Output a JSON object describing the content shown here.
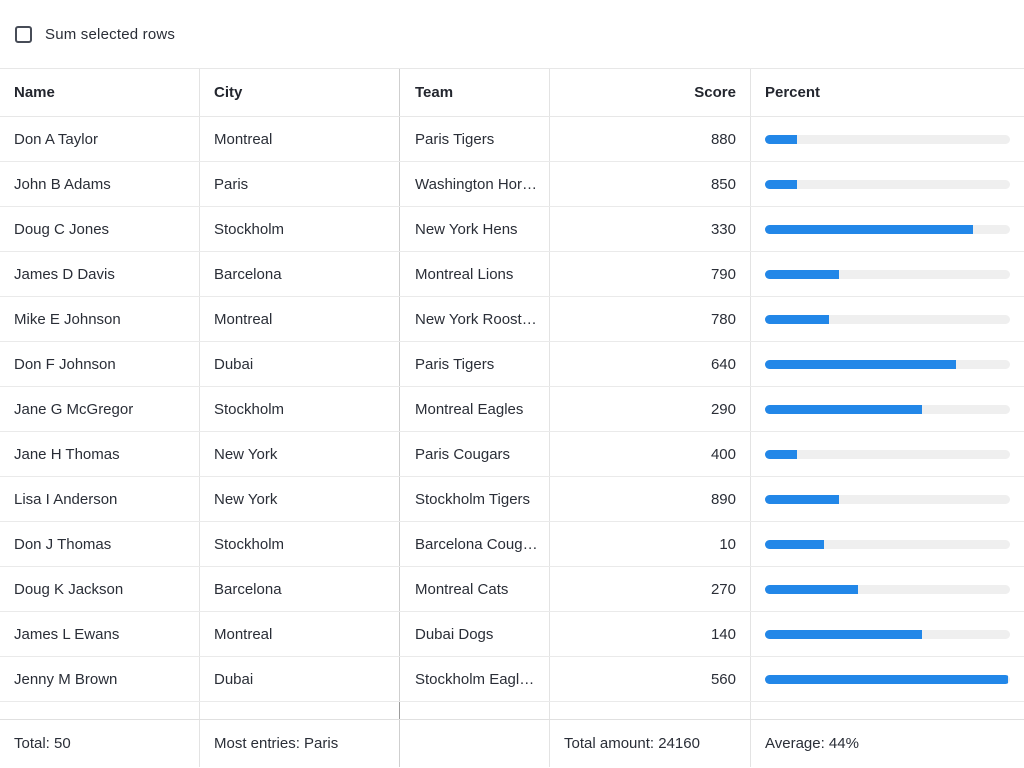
{
  "toolbar": {
    "checkbox_label": "Sum selected rows",
    "checkbox_checked": false
  },
  "colors": {
    "accent_bar": "#2287e8",
    "bar_track": "#efefef"
  },
  "table": {
    "columns": [
      {
        "label": "Name"
      },
      {
        "label": "City"
      },
      {
        "label": "Team"
      },
      {
        "label": "Score"
      },
      {
        "label": "Percent"
      }
    ],
    "rows": [
      {
        "name": "Don A Taylor",
        "city": "Montreal",
        "team": "Paris Tigers",
        "score": 880,
        "percent": 13
      },
      {
        "name": "John B Adams",
        "city": "Paris",
        "team": "Washington Hor…",
        "score": 850,
        "percent": 13
      },
      {
        "name": "Doug C Jones",
        "city": "Stockholm",
        "team": "New York Hens",
        "score": 330,
        "percent": 85
      },
      {
        "name": "James D Davis",
        "city": "Barcelona",
        "team": "Montreal Lions",
        "score": 790,
        "percent": 30
      },
      {
        "name": "Mike E Johnson",
        "city": "Montreal",
        "team": "New York Roost…",
        "score": 780,
        "percent": 26
      },
      {
        "name": "Don F Johnson",
        "city": "Dubai",
        "team": "Paris Tigers",
        "score": 640,
        "percent": 78
      },
      {
        "name": "Jane G McGregor",
        "city": "Stockholm",
        "team": "Montreal Eagles",
        "score": 290,
        "percent": 64
      },
      {
        "name": "Jane H Thomas",
        "city": "New York",
        "team": "Paris Cougars",
        "score": 400,
        "percent": 13
      },
      {
        "name": "Lisa I Anderson",
        "city": "New York",
        "team": "Stockholm Tigers",
        "score": 890,
        "percent": 30
      },
      {
        "name": "Don J Thomas",
        "city": "Stockholm",
        "team": "Barcelona Coug…",
        "score": 10,
        "percent": 24
      },
      {
        "name": "Doug K Jackson",
        "city": "Barcelona",
        "team": "Montreal Cats",
        "score": 270,
        "percent": 38
      },
      {
        "name": "James L Ewans",
        "city": "Montreal",
        "team": "Dubai Dogs",
        "score": 140,
        "percent": 64
      },
      {
        "name": "Jenny M Brown",
        "city": "Dubai",
        "team": "Stockholm Eagl…",
        "score": 560,
        "percent": 99
      }
    ],
    "footer": {
      "total": "Total: 50",
      "most_entries": "Most entries: Paris",
      "total_amount": "Total amount: 24160",
      "average": "Average: 44%"
    }
  }
}
